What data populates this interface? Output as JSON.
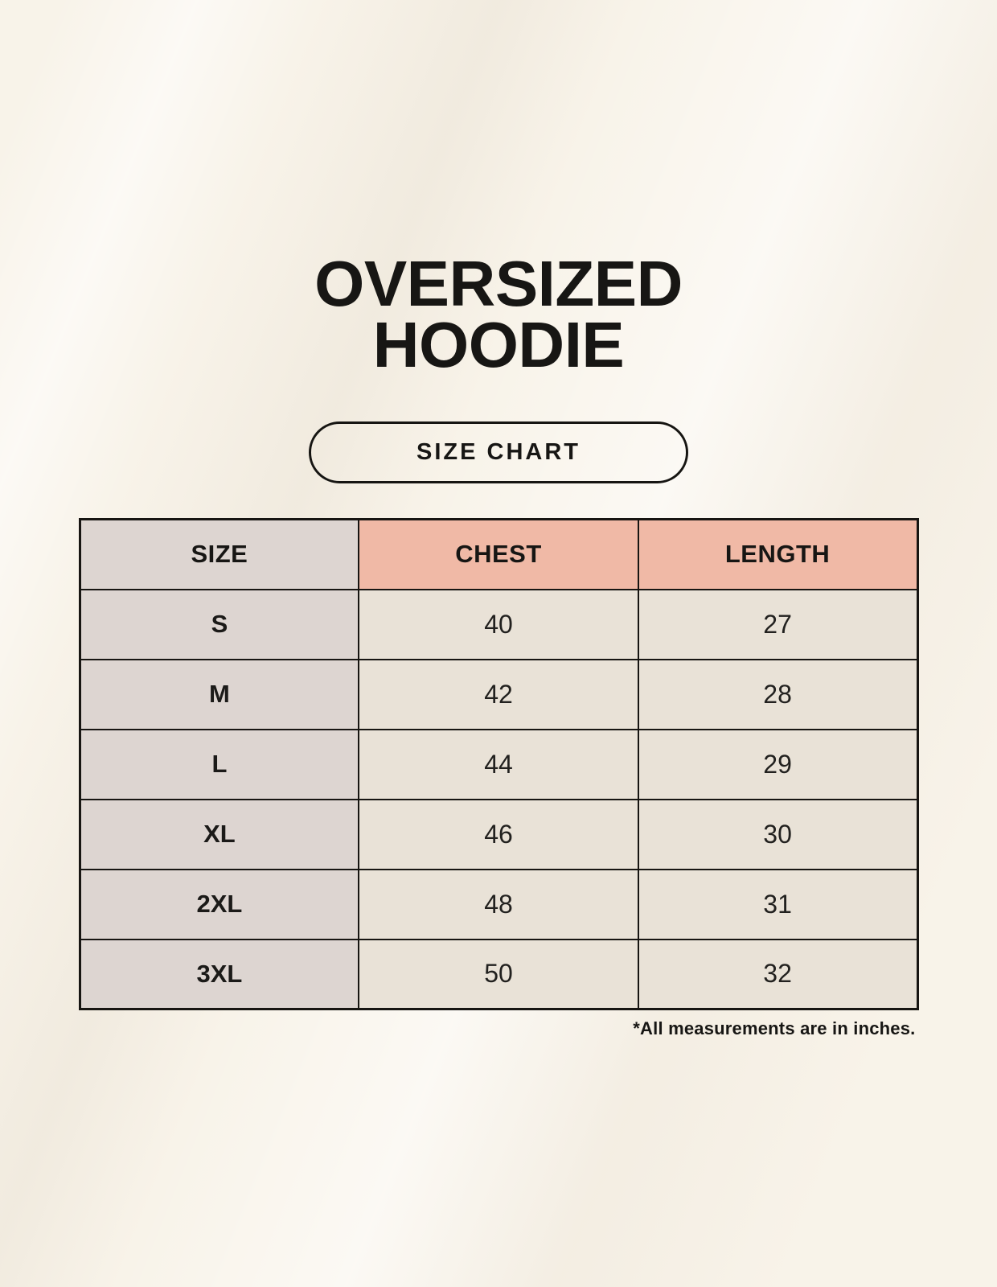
{
  "header": {
    "title_line1": "OVERSIZED",
    "title_line2": "HOODIE",
    "size_chart_button_label": "SIZE CHART"
  },
  "chart_data": {
    "type": "table",
    "title": "OVERSIZED HOODIE",
    "subtitle": "SIZE CHART",
    "columns": [
      "SIZE",
      "CHEST",
      "LENGTH"
    ],
    "rows": [
      {
        "size": "S",
        "chest": 40,
        "length": 27
      },
      {
        "size": "M",
        "chest": 42,
        "length": 28
      },
      {
        "size": "L",
        "chest": 44,
        "length": 29
      },
      {
        "size": "XL",
        "chest": 46,
        "length": 30
      },
      {
        "size": "2XL",
        "chest": 48,
        "length": 31
      },
      {
        "size": "3XL",
        "chest": 50,
        "length": 32
      }
    ],
    "units": "inches"
  },
  "footnote": "*All measurements are in inches.",
  "colors": {
    "background": "#f8f3e9",
    "size_column_bg": "#ddd5d1",
    "header_accent_bg": "#f0b9a6",
    "data_cell_bg": "#e9e2d7",
    "border": "#171512",
    "text": "#1b1a18"
  }
}
